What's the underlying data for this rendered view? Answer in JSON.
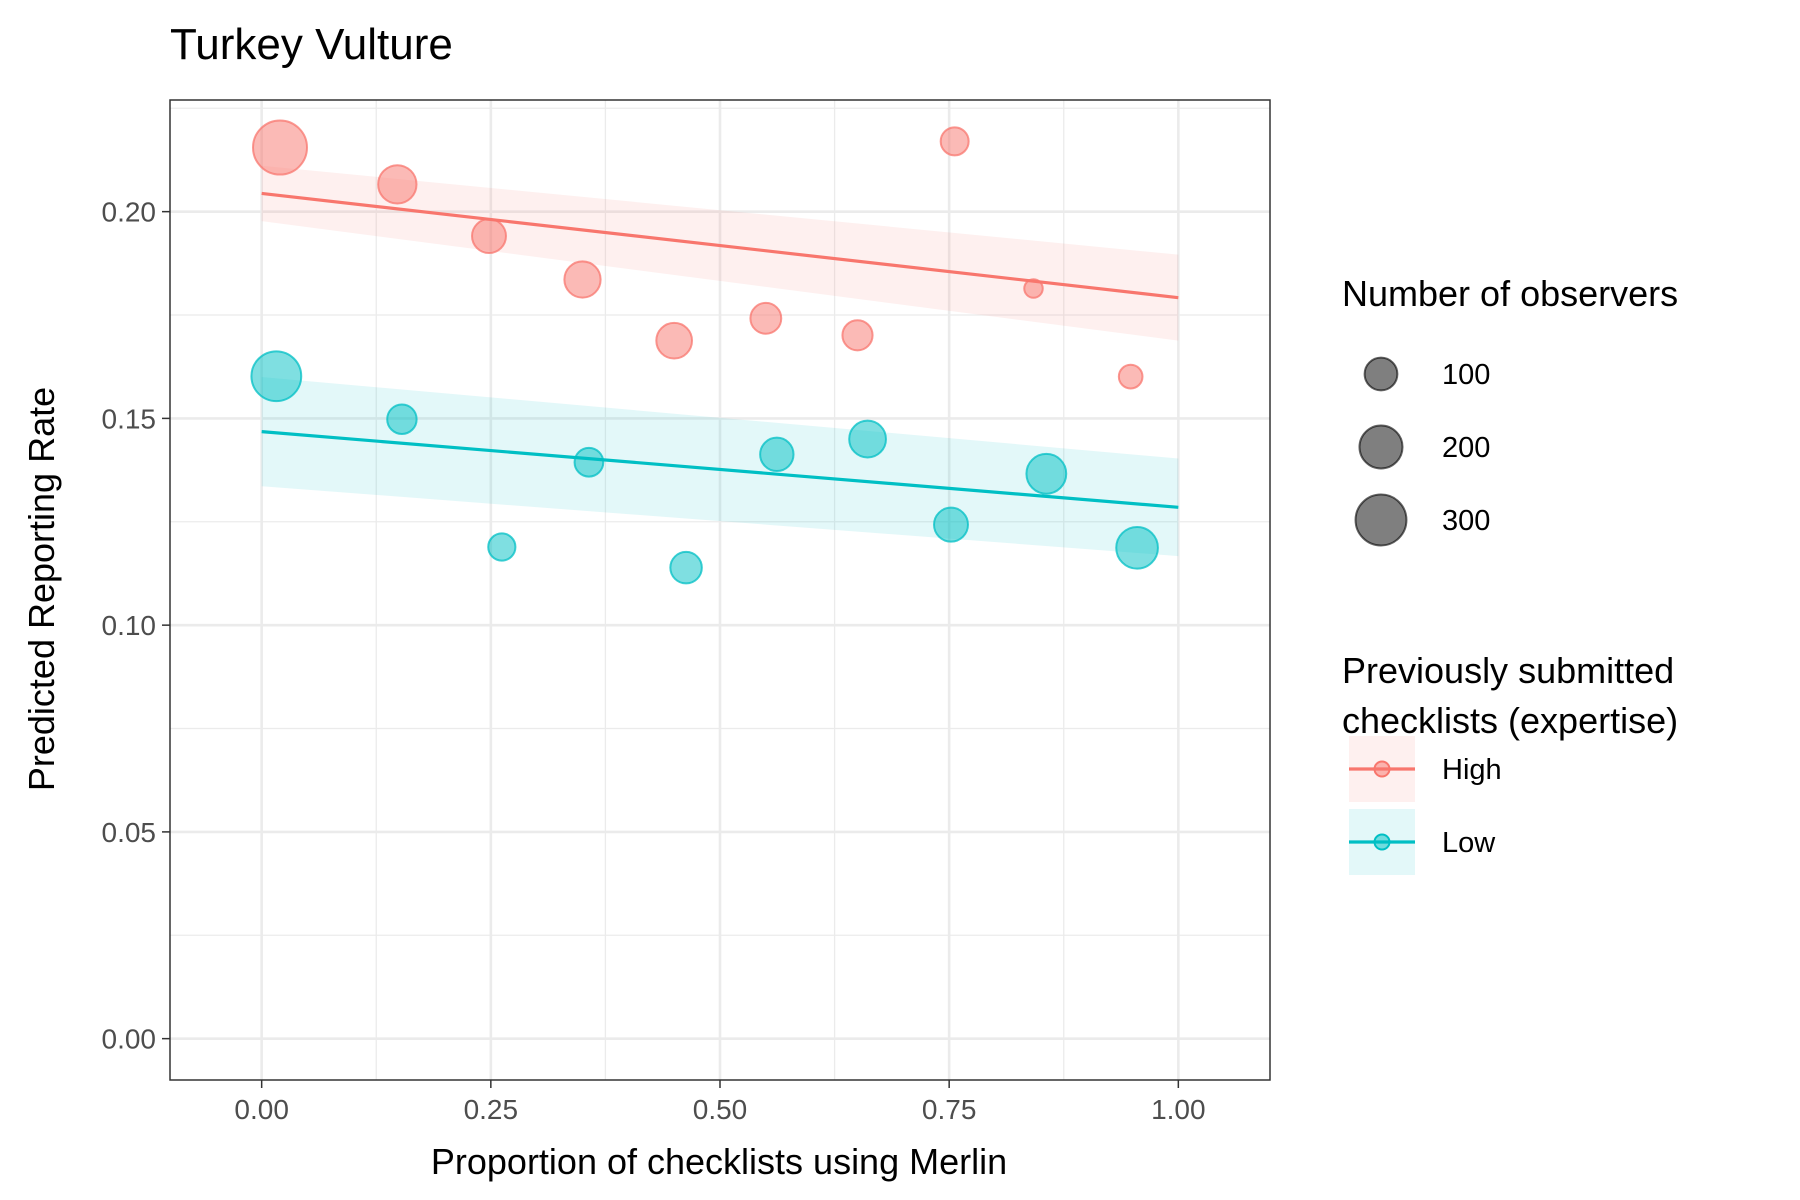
{
  "chart_data": {
    "type": "scatter",
    "title": "Turkey Vulture",
    "xlabel": "Proportion of checklists using Merlin",
    "ylabel": "Predicted Reporting Rate",
    "xlim": [
      -0.1,
      1.1
    ],
    "ylim": [
      -0.01,
      0.227
    ],
    "x_ticks": [
      0.0,
      0.25,
      0.5,
      0.75,
      1.0
    ],
    "x_tick_labels": [
      "0.00",
      "0.25",
      "0.50",
      "0.75",
      "1.00"
    ],
    "y_ticks": [
      0.0,
      0.05,
      0.1,
      0.15,
      0.2
    ],
    "y_tick_labels": [
      "0.00",
      "0.05",
      "0.10",
      "0.15",
      "0.20"
    ],
    "grid": true,
    "size_legend": {
      "title": "Number of observers",
      "entries": [
        {
          "label": "100",
          "value": 100
        },
        {
          "label": "200",
          "value": 200
        },
        {
          "label": "300",
          "value": 300
        }
      ]
    },
    "color_legend": {
      "title_lines": [
        "Previously submitted",
        "checklists (expertise)"
      ],
      "placement": "right"
    },
    "series": [
      {
        "name": "High",
        "color": "#F8766D",
        "points": [
          {
            "x": 0.02,
            "y": 0.2155,
            "n": 345
          },
          {
            "x": 0.148,
            "y": 0.2066,
            "n": 150
          },
          {
            "x": 0.248,
            "y": 0.1941,
            "n": 110
          },
          {
            "x": 0.35,
            "y": 0.1836,
            "n": 130
          },
          {
            "x": 0.45,
            "y": 0.1688,
            "n": 125
          },
          {
            "x": 0.55,
            "y": 0.1742,
            "n": 85
          },
          {
            "x": 0.65,
            "y": 0.1701,
            "n": 80
          },
          {
            "x": 0.756,
            "y": 0.217,
            "n": 65
          },
          {
            "x": 0.842,
            "y": 0.1814,
            "n": 18
          },
          {
            "x": 0.948,
            "y": 0.1601,
            "n": 40
          }
        ],
        "trend": {
          "x": [
            0.0,
            1.0
          ],
          "y": [
            0.2044,
            0.1792
          ]
        },
        "band": {
          "x": [
            0.0,
            1.0
          ],
          "lower": [
            0.1977,
            0.1688
          ],
          "upper": [
            0.2111,
            0.1896
          ]
        }
      },
      {
        "name": "Low",
        "color": "#00BFC4",
        "points": [
          {
            "x": 0.016,
            "y": 0.1602,
            "n": 285
          },
          {
            "x": 0.153,
            "y": 0.1498,
            "n": 75
          },
          {
            "x": 0.262,
            "y": 0.1189,
            "n": 60
          },
          {
            "x": 0.357,
            "y": 0.1394,
            "n": 70
          },
          {
            "x": 0.463,
            "y": 0.1139,
            "n": 90
          },
          {
            "x": 0.562,
            "y": 0.1413,
            "n": 105
          },
          {
            "x": 0.661,
            "y": 0.145,
            "n": 135
          },
          {
            "x": 0.752,
            "y": 0.1243,
            "n": 110
          },
          {
            "x": 0.856,
            "y": 0.1366,
            "n": 165
          },
          {
            "x": 0.955,
            "y": 0.1187,
            "n": 185
          }
        ],
        "trend": {
          "x": [
            0.0,
            1.0
          ],
          "y": [
            0.1468,
            0.1285
          ]
        },
        "band": {
          "x": [
            0.0,
            1.0
          ],
          "lower": [
            0.1336,
            0.1167
          ],
          "upper": [
            0.16,
            0.1403
          ]
        }
      }
    ]
  }
}
